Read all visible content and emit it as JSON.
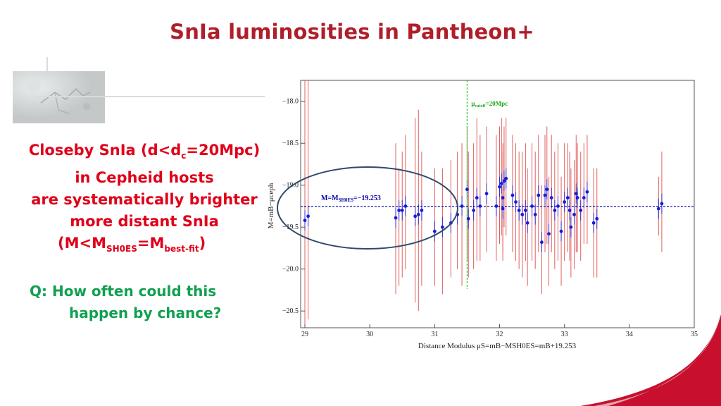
{
  "slide": {
    "title": "SnIa luminosities in Pantheon+",
    "claim": {
      "l1a": "Closeby SnIa (d<d",
      "l1sub": "c",
      "l1b": "=20Mpc)",
      "l2": "in Cepheid hosts",
      "l3": "are systematically brighter",
      "l4": "more distant SnIa",
      "l5a": "(M<M",
      "l5sub1": "SH0ES",
      "l5b": "=M",
      "l5sub2": "best-fit",
      "l5c": ")"
    },
    "question": {
      "l1": "Q: How often could this",
      "l2": "happen by chance?"
    },
    "colors": {
      "title": "#b01e2a",
      "claim": "#e0001a",
      "question": "#10a050"
    }
  },
  "chart_data": {
    "type": "scatter",
    "xlabel": "Distance Modulus μS=mB−MSH0ES=mB+19.253",
    "ylabel": "M=mB−μceph",
    "xlim": [
      29,
      35
    ],
    "ylim": [
      -20.7,
      -17.75
    ],
    "x_ticks": [
      29,
      30,
      31,
      32,
      33,
      34,
      35
    ],
    "y_ticks": [
      -18.0,
      -18.5,
      -19.0,
      -19.5,
      -20.0,
      -20.5
    ],
    "y_inverted": true,
    "hline": {
      "y": -19.253,
      "label": "M=M",
      "label_sub": "SH0ES",
      "label_rest": "=−19.253",
      "color": "#0000aa"
    },
    "vline": {
      "x": 31.5,
      "label": "μ",
      "label_sub": "cutoff",
      "label_rest": "=20Mpc",
      "color": "#22cc22"
    },
    "colors": {
      "points": "#1a1adc",
      "large_errors": "#e06060",
      "small_errors": "#3333cc"
    },
    "points": [
      {
        "x": 29.0,
        "y": -19.42,
        "lo": -20.7,
        "hi": -17.75,
        "sig": 0.5
      },
      {
        "x": 29.05,
        "y": -19.37,
        "lo": -20.6,
        "hi": -17.75,
        "sig": 0.5
      },
      {
        "x": 30.4,
        "y": -19.39,
        "lo": -20.3,
        "hi": -18.5,
        "sig": 0.1
      },
      {
        "x": 30.45,
        "y": -19.3,
        "lo": -20.2,
        "hi": -18.8,
        "sig": 0.1
      },
      {
        "x": 30.5,
        "y": -19.3,
        "lo": -20.1,
        "hi": -18.6,
        "sig": 0.1
      },
      {
        "x": 30.55,
        "y": -19.25,
        "lo": -20.0,
        "hi": -18.4,
        "sig": 0.1
      },
      {
        "x": 30.7,
        "y": -19.37,
        "lo": -20.4,
        "hi": -18.2,
        "sig": 0.1
      },
      {
        "x": 30.75,
        "y": -19.35,
        "lo": -20.5,
        "hi": -18.1,
        "sig": 0.1
      },
      {
        "x": 30.8,
        "y": -19.3,
        "lo": -20.2,
        "hi": -18.6,
        "sig": 0.1
      },
      {
        "x": 31.0,
        "y": -19.55,
        "lo": -20.2,
        "hi": -18.8,
        "sig": 0.1
      },
      {
        "x": 31.12,
        "y": -19.5,
        "lo": -20.3,
        "hi": -18.8,
        "sig": 0.1
      },
      {
        "x": 31.25,
        "y": -19.45,
        "lo": -20.1,
        "hi": -18.7,
        "sig": 0.1
      },
      {
        "x": 31.35,
        "y": -19.35,
        "lo": -20.0,
        "hi": -18.6,
        "sig": 0.1
      },
      {
        "x": 31.42,
        "y": -19.25,
        "lo": -20.2,
        "hi": -18.5,
        "sig": 0.1
      },
      {
        "x": 31.5,
        "y": -19.05,
        "lo": -19.9,
        "hi": -18.3,
        "sig": 0.1
      },
      {
        "x": 31.52,
        "y": -19.4,
        "lo": -20.1,
        "hi": -18.6,
        "sig": 0.1
      },
      {
        "x": 31.6,
        "y": -19.3,
        "lo": -20.0,
        "hi": -18.5,
        "sig": 0.1
      },
      {
        "x": 31.65,
        "y": -19.15,
        "lo": -19.9,
        "hi": -18.2,
        "sig": 0.1
      },
      {
        "x": 31.7,
        "y": -19.25,
        "lo": -19.9,
        "hi": -18.4,
        "sig": 0.1
      },
      {
        "x": 31.8,
        "y": -19.1,
        "lo": -19.8,
        "hi": -18.3,
        "sig": 0.1
      },
      {
        "x": 31.95,
        "y": -19.25,
        "lo": -19.9,
        "hi": -18.4,
        "sig": 0.1
      },
      {
        "x": 32.0,
        "y": -19.02,
        "lo": -19.7,
        "hi": -18.3,
        "sig": 0.1
      },
      {
        "x": 32.03,
        "y": -18.98,
        "lo": -19.6,
        "hi": -18.2,
        "sig": 0.1
      },
      {
        "x": 32.07,
        "y": -18.95,
        "lo": -19.5,
        "hi": -18.3,
        "sig": 0.1
      },
      {
        "x": 32.1,
        "y": -18.92,
        "lo": -19.6,
        "hi": -18.2,
        "sig": 0.1
      },
      {
        "x": 32.05,
        "y": -19.15,
        "lo": -19.8,
        "hi": -18.5,
        "sig": 0.1
      },
      {
        "x": 32.05,
        "y": -19.28,
        "lo": -19.9,
        "hi": -18.6,
        "sig": 0.1
      },
      {
        "x": 32.2,
        "y": -19.12,
        "lo": -19.8,
        "hi": -18.4,
        "sig": 0.1
      },
      {
        "x": 32.25,
        "y": -19.2,
        "lo": -19.9,
        "hi": -18.5,
        "sig": 0.1
      },
      {
        "x": 32.3,
        "y": -19.3,
        "lo": -20.0,
        "hi": -18.6,
        "sig": 0.1
      },
      {
        "x": 32.35,
        "y": -19.35,
        "lo": -20.1,
        "hi": -18.6,
        "sig": 0.1
      },
      {
        "x": 32.4,
        "y": -19.3,
        "lo": -19.9,
        "hi": -18.5,
        "sig": 0.1
      },
      {
        "x": 32.43,
        "y": -19.45,
        "lo": -20.2,
        "hi": -18.8,
        "sig": 0.1
      },
      {
        "x": 32.5,
        "y": -19.25,
        "lo": -19.9,
        "hi": -18.5,
        "sig": 0.1
      },
      {
        "x": 32.55,
        "y": -19.35,
        "lo": -20.0,
        "hi": -18.6,
        "sig": 0.1
      },
      {
        "x": 32.6,
        "y": -19.12,
        "lo": -19.8,
        "hi": -18.4,
        "sig": 0.1
      },
      {
        "x": 32.65,
        "y": -19.68,
        "lo": -20.3,
        "hi": -19.0,
        "sig": 0.1
      },
      {
        "x": 32.7,
        "y": -19.12,
        "lo": -19.8,
        "hi": -18.4,
        "sig": 0.1
      },
      {
        "x": 32.73,
        "y": -19.05,
        "lo": -19.7,
        "hi": -18.3,
        "sig": 0.1
      },
      {
        "x": 32.76,
        "y": -19.58,
        "lo": -20.2,
        "hi": -18.9,
        "sig": 0.1
      },
      {
        "x": 32.8,
        "y": -19.15,
        "lo": -19.8,
        "hi": -18.4,
        "sig": 0.1
      },
      {
        "x": 32.85,
        "y": -19.3,
        "lo": -20.0,
        "hi": -18.6,
        "sig": 0.1
      },
      {
        "x": 32.9,
        "y": -19.25,
        "lo": -19.9,
        "hi": -18.5,
        "sig": 0.1
      },
      {
        "x": 32.95,
        "y": -19.55,
        "lo": -20.2,
        "hi": -18.9,
        "sig": 0.1
      },
      {
        "x": 33.0,
        "y": -19.2,
        "lo": -19.9,
        "hi": -18.5,
        "sig": 0.1
      },
      {
        "x": 33.05,
        "y": -19.15,
        "lo": -19.8,
        "hi": -18.5,
        "sig": 0.1
      },
      {
        "x": 33.08,
        "y": -19.3,
        "lo": -19.9,
        "hi": -18.6,
        "sig": 0.1
      },
      {
        "x": 33.1,
        "y": -19.5,
        "lo": -20.1,
        "hi": -18.8,
        "sig": 0.1
      },
      {
        "x": 33.15,
        "y": -19.35,
        "lo": -20.0,
        "hi": -18.7,
        "sig": 0.1
      },
      {
        "x": 33.18,
        "y": -19.1,
        "lo": -19.8,
        "hi": -18.4,
        "sig": 0.1
      },
      {
        "x": 33.2,
        "y": -19.15,
        "lo": -19.8,
        "hi": -18.5,
        "sig": 0.1
      },
      {
        "x": 33.25,
        "y": -19.3,
        "lo": -19.9,
        "hi": -18.6,
        "sig": 0.1
      },
      {
        "x": 33.3,
        "y": -19.15,
        "lo": -19.7,
        "hi": -18.5,
        "sig": 0.1
      },
      {
        "x": 33.35,
        "y": -19.08,
        "lo": -19.7,
        "hi": -18.4,
        "sig": 0.1
      },
      {
        "x": 33.45,
        "y": -19.45,
        "lo": -20.1,
        "hi": -18.8,
        "sig": 0.1
      },
      {
        "x": 33.5,
        "y": -19.4,
        "lo": -20.1,
        "hi": -18.8,
        "sig": 0.1
      },
      {
        "x": 34.45,
        "y": -19.28,
        "lo": -19.6,
        "hi": -18.9,
        "sig": 0.1
      },
      {
        "x": 34.5,
        "y": -19.22,
        "lo": -19.8,
        "hi": -18.6,
        "sig": 0.1
      }
    ]
  }
}
